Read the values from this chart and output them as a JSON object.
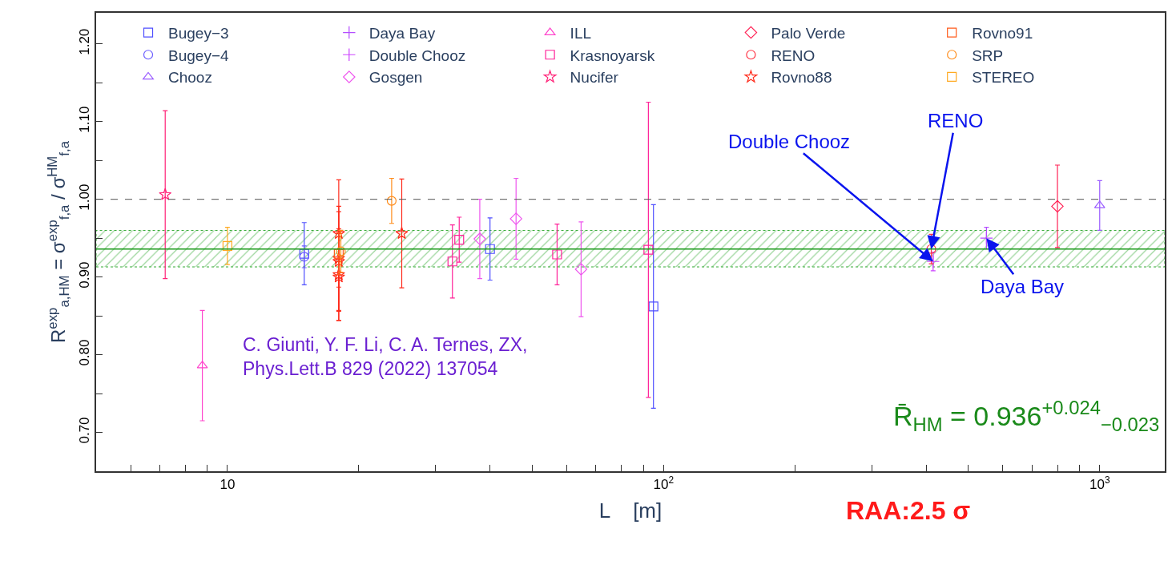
{
  "chart_data": {
    "type": "scatter",
    "xlabel": "L    [m]",
    "ylabel": "R$^{exp}$$_{a,HM}$ = σ$^{exp}$$_{f,a}$ / σ$^{HM}$$_{f,a}$",
    "log": "x",
    "xlim": [
      5,
      1410
    ],
    "xticks": [
      {
        "value": 6,
        "label": null
      },
      {
        "value": 7,
        "label": null
      },
      {
        "value": 8,
        "label": null
      },
      {
        "value": 9,
        "label": null
      },
      10,
      {
        "value": 20,
        "label": null
      },
      {
        "value": 30,
        "label": null
      },
      {
        "value": 40,
        "label": null
      },
      {
        "value": 50,
        "label": null
      },
      {
        "value": 60,
        "label": null
      },
      {
        "value": 70,
        "label": null
      },
      {
        "value": 80,
        "label": null
      },
      {
        "value": 90,
        "label": null
      },
      {
        "value": 100,
        "label": "10$^{2}$"
      },
      {
        "value": 200,
        "label": null
      },
      {
        "value": 300,
        "label": null
      },
      {
        "value": 400,
        "label": null
      },
      {
        "value": 500,
        "label": null
      },
      {
        "value": 600,
        "label": null
      },
      {
        "value": 700,
        "label": null
      },
      {
        "value": 800,
        "label": null
      },
      {
        "value": 900,
        "label": null
      },
      {
        "value": 1000,
        "label": "10$^{3}$"
      }
    ],
    "ylim": [
      0.65,
      1.24
    ],
    "yticks": [
      {
        "value": 0.7,
        "label": "0.70"
      },
      {
        "value": 0.75,
        "label": null
      },
      {
        "value": 0.8,
        "label": "0.80"
      },
      {
        "value": 0.85,
        "label": null
      },
      {
        "value": 0.9,
        "label": "0.90"
      },
      {
        "value": 0.95,
        "label": null
      },
      {
        "value": 1.0,
        "label": "1.00"
      },
      {
        "value": 1.05,
        "label": null
      },
      {
        "value": 1.1,
        "label": "1.10"
      },
      {
        "value": 1.15,
        "label": null
      },
      {
        "value": 1.2,
        "label": "1.20"
      }
    ],
    "legend": "top",
    "series": [
      {
        "name": "Bugey−3",
        "color": "#4f4fff",
        "marker": "square",
        "x": [
          15.0,
          40.0,
          94.8
        ],
        "values": [
          0.93,
          0.936,
          0.862
        ],
        "errors": [
          0.04,
          0.04,
          0.131
        ]
      },
      {
        "name": "Bugey−4",
        "color": "#6a5cff",
        "marker": "circle",
        "x": [
          15.0
        ],
        "values": [
          0.926
        ],
        "errors": [
          0.014
        ]
      },
      {
        "name": "Chooz",
        "color": "#9a5cff",
        "marker": "triangle",
        "x": [
          1000
        ],
        "values": [
          0.992
        ],
        "errors": [
          0.032
        ]
      },
      {
        "name": "Daya Bay",
        "color": "#b44dff",
        "marker": "cross",
        "x": [
          550
        ],
        "values": [
          0.95
        ],
        "errors": [
          0.014
        ]
      },
      {
        "name": "Double Chooz",
        "color": "#cc44ff",
        "marker": "cross",
        "x": [
          415
        ],
        "values": [
          0.92
        ],
        "errors": [
          0.012
        ]
      },
      {
        "name": "Gosgen",
        "color": "#ee55ee",
        "marker": "diamond",
        "x": [
          37.9,
          45.9,
          64.7
        ],
        "values": [
          0.949,
          0.975,
          0.91
        ],
        "errors": [
          0.051,
          0.052,
          0.061
        ]
      },
      {
        "name": "ILL",
        "color": "#ff44cc",
        "marker": "triangle",
        "x": [
          8.76
        ],
        "values": [
          0.786
        ],
        "errors": [
          0.071
        ]
      },
      {
        "name": "Krasnoyarsk",
        "color": "#ff2299",
        "marker": "square",
        "x": [
          32.8,
          34.0,
          57.0,
          92.3
        ],
        "values": [
          0.92,
          0.948,
          0.929,
          0.935
        ],
        "errors": [
          0.047,
          0.029,
          0.039,
          0.19
        ]
      },
      {
        "name": "Nucifer",
        "color": "#ff2277",
        "marker": "star",
        "x": [
          7.2
        ],
        "values": [
          1.006
        ],
        "errors": [
          0.108
        ]
      },
      {
        "name": "Palo Verde",
        "color": "#ff2255",
        "marker": "diamond",
        "x": [
          800
        ],
        "values": [
          0.991
        ],
        "errors": [
          0.053
        ]
      },
      {
        "name": "RENO",
        "color": "#ff3344",
        "marker": "circle",
        "x": [
          411
        ],
        "values": [
          0.936
        ],
        "errors": [
          0.019
        ]
      },
      {
        "name": "Rovno88",
        "color": "#ff2a1a",
        "marker": "star",
        "x": [
          18.0,
          18.0,
          18.0,
          18.0,
          18.0,
          25.1
        ],
        "values": [
          0.956,
          0.924,
          0.92,
          0.903,
          0.9,
          0.956
        ],
        "errors": [
          0.069,
          0.067,
          0.064,
          0.059,
          0.056,
          0.07
        ]
      },
      {
        "name": "Rovno91",
        "color": "#ff5a1a",
        "marker": "square",
        "x": [
          18.0
        ],
        "values": [
          0.93
        ],
        "errors": [
          0.027
        ]
      },
      {
        "name": "SRP",
        "color": "#ff8c1a",
        "marker": "circle",
        "x": [
          18.2,
          23.8
        ],
        "values": [
          0.933,
          0.998
        ],
        "errors": [
          0.027,
          0.029
        ]
      },
      {
        "name": "STEREO",
        "color": "#ffaa22",
        "marker": "square",
        "x": [
          10.0
        ],
        "values": [
          0.94
        ],
        "errors": [
          0.024
        ]
      }
    ],
    "ref_lines": [
      {
        "axis": "y",
        "value": 1.0,
        "color": "#555555",
        "line_style": "dashed"
      },
      {
        "axis": "y",
        "value": 0.936,
        "color": "#1a9a1a",
        "line_style": "solid"
      }
    ],
    "bands": [
      {
        "axis": "y",
        "from": 0.913,
        "to": 0.96,
        "color": "#33aa33"
      }
    ],
    "annotations": [
      {
        "text": "Double Chooz",
        "x": 415,
        "y": 0.92
      },
      {
        "text": "RENO",
        "x": 411,
        "y": 0.936
      },
      {
        "text": "Daya Bay",
        "x": 550,
        "y": 0.95
      },
      "C. Giunti, Y. F. Li, C. A. Ternes, ZX,\nPhys.Lett.B 829 (2022) 137054",
      "R̄$_{HM}$ = 0.936$^{+0.024}$$_{−0.023}$",
      "RAA:2.5 σ"
    ]
  }
}
